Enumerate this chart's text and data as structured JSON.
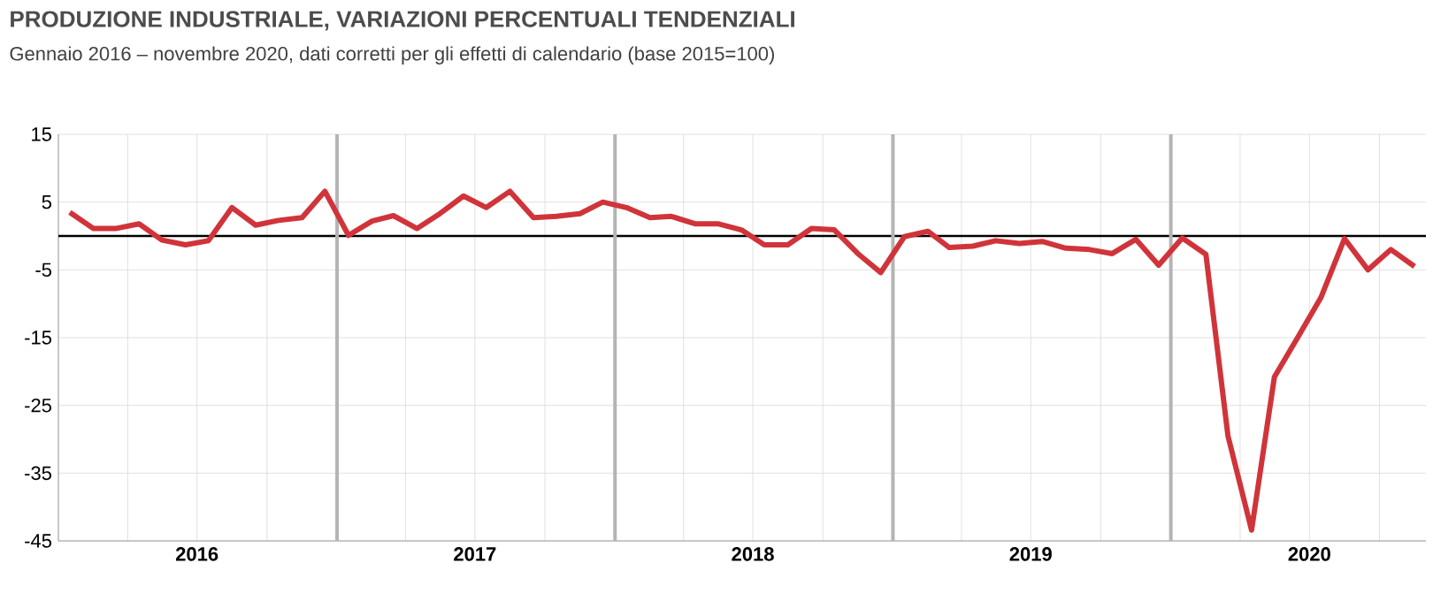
{
  "chart_data": {
    "type": "line",
    "title": "PRODUZIONE INDUSTRIALE, VARIAZIONI PERCENTUALI TENDENZIALI",
    "subtitle": "Gennaio 2016 – novembre 2020, dati corretti per gli effetti di calendario (base 2015=100)",
    "x": [
      "2016-01-16",
      "2016-02-16",
      "2016-03-16",
      "2016-04-16",
      "2016-05-16",
      "2016-06-16",
      "2016-07-16",
      "2016-08-16",
      "2016-09-16",
      "2016-10-16",
      "2016-11-16",
      "2016-12-16",
      "2017-01-16",
      "2017-02-16",
      "2017-03-16",
      "2017-04-16",
      "2017-05-16",
      "2017-06-16",
      "2017-07-16",
      "2017-08-16",
      "2017-09-16",
      "2017-10-16",
      "2017-11-16",
      "2017-12-16",
      "2018-01-16",
      "2018-02-16",
      "2018-03-16",
      "2018-04-16",
      "2018-05-16",
      "2018-06-16",
      "2018-07-16",
      "2018-08-16",
      "2018-09-16",
      "2018-10-16",
      "2018-11-16",
      "2018-12-16",
      "2019-01-16",
      "2019-02-16",
      "2019-03-16",
      "2019-04-16",
      "2019-05-16",
      "2019-06-16",
      "2019-07-16",
      "2019-08-16",
      "2019-09-16",
      "2019-10-16",
      "2019-11-16",
      "2019-12-16",
      "2020-01-16",
      "2020-02-16",
      "2020-03-16",
      "2020-04-16",
      "2020-05-16",
      "2020-06-16",
      "2020-07-16",
      "2020-08-16",
      "2020-09-16",
      "2020-10-16",
      "2020-11-16"
    ],
    "series": [
      {
        "color": "#d0343a",
        "values": [
          3.5,
          1.1,
          1.1,
          1.8,
          -0.6,
          -1.3,
          -0.7,
          4.2,
          1.6,
          2.3,
          2.7,
          6.6,
          0.1,
          2.2,
          3.0,
          1.1,
          3.3,
          5.9,
          4.2,
          6.6,
          2.7,
          2.9,
          3.3,
          5.0,
          4.2,
          2.7,
          2.9,
          1.8,
          1.8,
          0.9,
          -1.3,
          -1.3,
          1.1,
          0.9,
          -2.6,
          -5.4,
          -0.1,
          0.7,
          -1.7,
          -1.5,
          -0.7,
          -1.1,
          -0.8,
          -1.8,
          -2.0,
          -2.6,
          -0.5,
          -4.3,
          -0.3,
          -2.7,
          -29.5,
          -43.4,
          -20.8,
          -14.9,
          -9.1,
          -0.4,
          -5.0,
          -2.0,
          -4.5
        ]
      }
    ],
    "xlim": [
      "2016-01",
      "2020-12"
    ],
    "xticks": [
      {
        "value": "2016-01",
        "label": null
      },
      {
        "value": "2016-04",
        "label": null
      },
      {
        "value": "2016-07",
        "label": "2016"
      },
      {
        "value": "2016-10",
        "label": null
      },
      {
        "value": "2017-04",
        "label": null
      },
      {
        "value": "2017-07",
        "label": "2017"
      },
      {
        "value": "2017-10",
        "label": null
      },
      {
        "value": "2018-04",
        "label": null
      },
      {
        "value": "2018-07",
        "label": "2018"
      },
      {
        "value": "2018-10",
        "label": null
      },
      {
        "value": "2019-04",
        "label": null
      },
      {
        "value": "2019-07",
        "label": "2019"
      },
      {
        "value": "2019-10",
        "label": null
      },
      {
        "value": "2020-04",
        "label": null
      },
      {
        "value": "2020-07",
        "label": "2020"
      },
      {
        "value": "2020-10",
        "label": null
      }
    ],
    "ylim": [
      -45,
      15
    ],
    "yticks": [
      -45,
      -35,
      -25,
      -15,
      -5,
      5,
      15
    ],
    "grid": true,
    "ref_lines": [
      {
        "axis": "y",
        "value": 0,
        "color": "#000000"
      },
      {
        "axis": "x",
        "value": "2017-01",
        "color": "#b4b4b4"
      },
      {
        "axis": "x",
        "value": "2018-01",
        "color": "#b4b4b4"
      },
      {
        "axis": "x",
        "value": "2019-01",
        "color": "#b4b4b4"
      },
      {
        "axis": "x",
        "value": "2020-01",
        "color": "#b4b4b4"
      }
    ]
  }
}
